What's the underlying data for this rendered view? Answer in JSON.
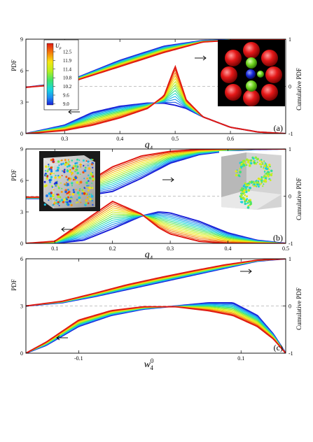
{
  "colors": {
    "frame": "#000000",
    "dash": "#b0b0b0",
    "palette": [
      "#1a20d8",
      "#1e8ef2",
      "#17d6de",
      "#3fe46a",
      "#b7f020",
      "#f6e612",
      "#f57d0c",
      "#e01a12"
    ]
  },
  "colorbar": {
    "title_main": "U",
    "title_sub": "p",
    "ticks": [
      "12.5",
      "11.9",
      "11.4",
      "10.8",
      "10.2",
      "9.6",
      "9.0"
    ]
  },
  "chart_data": [
    {
      "id": "a",
      "type": "line",
      "panel_label": "(a)",
      "xlabel": "q",
      "xlabel_sub": "4",
      "ylabel": "PDF",
      "ylabel_right": "Cumulative PDF",
      "xlim": [
        0.23,
        0.7
      ],
      "ylim": [
        0,
        9
      ],
      "ylim_right": [
        -1,
        1
      ],
      "xticks": [
        "0.3",
        "0.4",
        "0.5",
        "0.6"
      ],
      "xtick_values": [
        0.3,
        0.4,
        0.5,
        0.6
      ],
      "yticks": [
        "0",
        "3",
        "6",
        "9"
      ],
      "ytick_values": [
        0,
        3,
        6,
        9
      ],
      "yticks_right": [
        "-1",
        "0",
        "1"
      ],
      "ytick_right_values": [
        -1,
        0,
        1
      ],
      "arrows": [
        {
          "direction": "left",
          "axis": "left"
        },
        {
          "direction": "right",
          "axis": "right"
        }
      ],
      "insets": [
        "cluster-render"
      ],
      "cdf_low": {
        "x": [
          0.23,
          0.3,
          0.4,
          0.48,
          0.55,
          0.62,
          0.7
        ],
        "y": [
          -0.02,
          0.08,
          0.55,
          0.85,
          0.97,
          0.99,
          1.0
        ]
      },
      "cdf_high": {
        "x": [
          0.23,
          0.3,
          0.4,
          0.48,
          0.55,
          0.62,
          0.7
        ],
        "y": [
          -0.02,
          0.05,
          0.42,
          0.72,
          0.94,
          0.99,
          1.0
        ]
      },
      "pdf_low": {
        "x": [
          0.23,
          0.3,
          0.35,
          0.4,
          0.45,
          0.48,
          0.5,
          0.52,
          0.55,
          0.6,
          0.65,
          0.7
        ],
        "y": [
          0.0,
          0.8,
          2.0,
          2.6,
          2.9,
          2.9,
          2.7,
          2.4,
          1.6,
          0.6,
          0.15,
          0.0
        ]
      },
      "pdf_high": {
        "x": [
          0.23,
          0.3,
          0.35,
          0.4,
          0.45,
          0.48,
          0.5,
          0.52,
          0.55,
          0.6,
          0.65,
          0.7
        ],
        "y": [
          0.0,
          0.3,
          0.8,
          1.5,
          2.4,
          3.6,
          6.4,
          3.2,
          1.6,
          0.6,
          0.15,
          0.0
        ]
      }
    },
    {
      "id": "b",
      "type": "line",
      "panel_label": "(b)",
      "xlabel": "q",
      "xlabel_sub": "4",
      "ylabel": "PDF",
      "ylabel_right": "Cumulative PDF",
      "xlim": [
        0.05,
        0.5
      ],
      "ylim": [
        0,
        9
      ],
      "ylim_right": [
        -1,
        1
      ],
      "xticks": [
        "0.1",
        "0.2",
        "0.3",
        "0.4",
        "0.5"
      ],
      "xtick_values": [
        0.1,
        0.2,
        0.3,
        0.4,
        0.5
      ],
      "yticks": [
        "0",
        "3",
        "6",
        "9"
      ],
      "ytick_values": [
        0,
        3,
        6,
        9
      ],
      "yticks_right": [
        "-1",
        "0",
        "1"
      ],
      "ytick_right_values": [
        -1,
        0,
        1
      ],
      "arrows": [
        {
          "direction": "left",
          "axis": "left"
        },
        {
          "direction": "right",
          "axis": "right"
        }
      ],
      "insets": [
        "box-render-left",
        "box-render-right"
      ],
      "cdf_low": {
        "x": [
          0.1,
          0.15,
          0.2,
          0.25,
          0.3,
          0.35,
          0.4,
          0.45,
          0.5
        ],
        "y": [
          -0.05,
          0.0,
          0.1,
          0.38,
          0.7,
          0.88,
          0.96,
          0.99,
          1.0
        ]
      },
      "cdf_high": {
        "x": [
          0.1,
          0.15,
          0.2,
          0.25,
          0.3,
          0.35,
          0.4,
          0.45,
          0.5
        ],
        "y": [
          -0.02,
          0.25,
          0.62,
          0.85,
          0.95,
          0.99,
          1.0,
          1.0,
          1.0
        ]
      },
      "pdf_low": {
        "x": [
          0.05,
          0.1,
          0.15,
          0.2,
          0.25,
          0.28,
          0.3,
          0.35,
          0.4,
          0.45,
          0.5
        ],
        "y": [
          0.0,
          0.0,
          0.3,
          1.4,
          2.6,
          3.0,
          2.9,
          2.1,
          1.0,
          0.3,
          0.0
        ]
      },
      "pdf_high": {
        "x": [
          0.05,
          0.1,
          0.15,
          0.2,
          0.25,
          0.28,
          0.3,
          0.35,
          0.4,
          0.45,
          0.5
        ],
        "y": [
          0.0,
          0.2,
          2.1,
          4.0,
          2.8,
          1.5,
          0.9,
          0.2,
          0.0,
          0.0,
          0.0
        ]
      }
    },
    {
      "id": "c",
      "type": "line",
      "panel_label": "(c)",
      "xlabel": "w",
      "xlabel_sub": "4",
      "xlabel_sup": "0",
      "ylabel": "PDF",
      "ylabel_right": "Cumulative PDF",
      "xlim": [
        -0.165,
        0.155
      ],
      "ylim": [
        0,
        6
      ],
      "ylim_right": [
        -1,
        1
      ],
      "xticks": [
        "-0.1",
        "0.1"
      ],
      "xtick_values": [
        -0.1,
        0.1
      ],
      "yticks": [
        "0",
        "3",
        "6"
      ],
      "ytick_values": [
        0,
        3,
        6
      ],
      "yticks_right": [
        "-1",
        "0",
        "1"
      ],
      "ytick_right_values": [
        -1,
        0,
        1
      ],
      "arrows": [
        {
          "direction": "left",
          "axis": "left"
        },
        {
          "direction": "right",
          "axis": "right"
        }
      ],
      "insets": [],
      "cdf_low": {
        "x": [
          -0.165,
          -0.12,
          -0.08,
          -0.04,
          0.0,
          0.04,
          0.08,
          0.12,
          0.155
        ],
        "y": [
          0.0,
          0.07,
          0.2,
          0.35,
          0.5,
          0.65,
          0.8,
          0.95,
          1.0
        ]
      },
      "cdf_high": {
        "x": [
          -0.165,
          -0.12,
          -0.08,
          -0.04,
          0.0,
          0.04,
          0.08,
          0.12,
          0.155
        ],
        "y": [
          0.0,
          0.1,
          0.27,
          0.45,
          0.6,
          0.74,
          0.87,
          0.97,
          1.0
        ]
      },
      "pdf_low": {
        "x": [
          -0.165,
          -0.14,
          -0.1,
          -0.06,
          -0.02,
          0.02,
          0.06,
          0.09,
          0.12,
          0.14,
          0.155
        ],
        "y": [
          0.0,
          0.5,
          1.7,
          2.4,
          2.8,
          3.0,
          3.2,
          3.2,
          2.4,
          1.2,
          0.0
        ]
      },
      "pdf_high": {
        "x": [
          -0.165,
          -0.14,
          -0.1,
          -0.06,
          -0.02,
          0.02,
          0.06,
          0.09,
          0.12,
          0.14,
          0.155
        ],
        "y": [
          0.0,
          0.7,
          2.1,
          2.7,
          2.95,
          2.95,
          2.7,
          2.4,
          1.7,
          0.9,
          0.0
        ]
      }
    }
  ]
}
